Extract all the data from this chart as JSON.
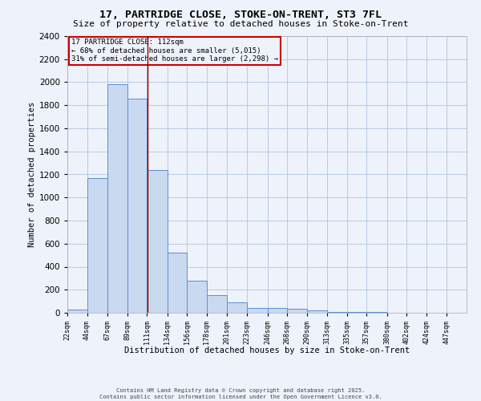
{
  "title1": "17, PARTRIDGE CLOSE, STOKE-ON-TRENT, ST3 7FL",
  "title2": "Size of property relative to detached houses in Stoke-on-Trent",
  "xlabel": "Distribution of detached houses by size in Stoke-on-Trent",
  "ylabel": "Number of detached properties",
  "annotation_line1": "17 PARTRIDGE CLOSE: 112sqm",
  "annotation_line2": "← 68% of detached houses are smaller (5,015)",
  "annotation_line3": "31% of semi-detached houses are larger (2,298) →",
  "footer1": "Contains HM Land Registry data © Crown copyright and database right 2025.",
  "footer2": "Contains public sector information licensed under the Open Government Licence v3.0.",
  "bar_color": "#c9d9f0",
  "bar_edge_color": "#5b8dd9",
  "vline_color": "#8b0000",
  "annotation_box_color": "#cc0000",
  "grid_color": "#b0c4de",
  "background_color": "#eef2fa",
  "bins": [
    22,
    44,
    67,
    89,
    111,
    134,
    156,
    178,
    201,
    223,
    246,
    268,
    290,
    313,
    335,
    357,
    380,
    402,
    424,
    447,
    469
  ],
  "values": [
    25,
    1170,
    1980,
    1860,
    1240,
    520,
    275,
    150,
    90,
    45,
    40,
    35,
    20,
    10,
    5,
    5,
    3,
    2,
    2,
    2
  ],
  "property_size": 112,
  "ylim": [
    0,
    2400
  ],
  "yticks": [
    0,
    200,
    400,
    600,
    800,
    1000,
    1200,
    1400,
    1600,
    1800,
    2000,
    2200,
    2400
  ]
}
